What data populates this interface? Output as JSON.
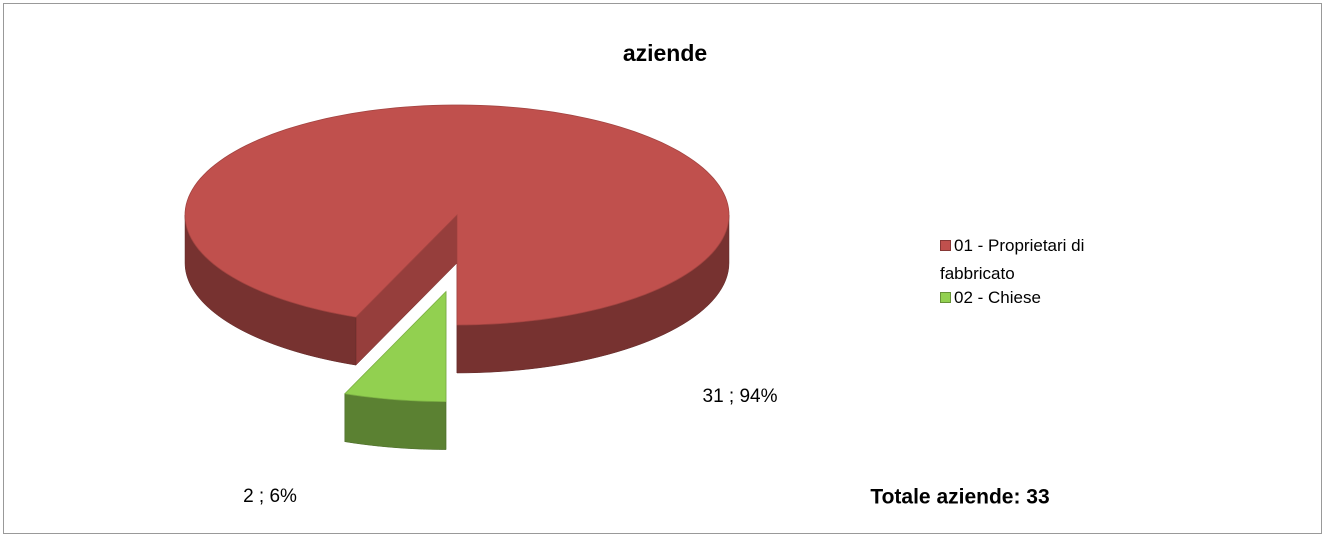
{
  "chart_data": {
    "type": "pie",
    "title": "aziende",
    "categories": [
      "01 - Proprietari di fabbricato",
      "02 - Chiese"
    ],
    "values": [
      31,
      2
    ],
    "value_labels": [
      "31 ; 94%",
      "2 ; 6%"
    ],
    "colors": [
      "#c0504d",
      "#92d050"
    ],
    "legend": "right",
    "annotation": "Totale aziende: 33"
  }
}
